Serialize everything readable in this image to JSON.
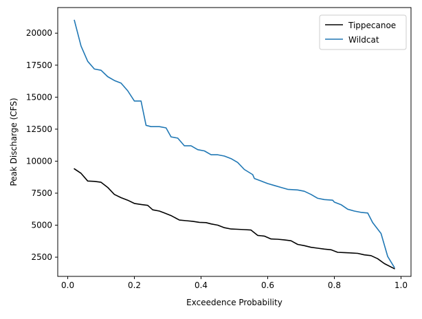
{
  "chart_data": {
    "type": "line",
    "title": "",
    "xlabel": "Exceedence Probability",
    "ylabel": "Peak Discharge (CFS)",
    "xlim": [
      -0.03,
      1.03
    ],
    "ylim": [
      1000,
      22000
    ],
    "xticks": [
      0.0,
      0.2,
      0.4,
      0.6,
      0.8,
      1.0
    ],
    "xtick_labels": [
      "0.0",
      "0.2",
      "0.4",
      "0.6",
      "0.8",
      "1.0"
    ],
    "yticks": [
      2500,
      5000,
      7500,
      10000,
      12500,
      15000,
      17500,
      20000
    ],
    "ytick_labels": [
      "2500",
      "5000",
      "7500",
      "10000",
      "12500",
      "15000",
      "17500",
      "20000"
    ],
    "grid": false,
    "legend_position": "top-right",
    "series": [
      {
        "name": "Tippecanoe",
        "color": "#000000",
        "x": [
          0.02,
          0.04,
          0.06,
          0.08,
          0.1,
          0.12,
          0.14,
          0.16,
          0.18,
          0.2,
          0.22,
          0.24,
          0.255,
          0.275,
          0.29,
          0.31,
          0.335,
          0.355,
          0.375,
          0.395,
          0.415,
          0.43,
          0.45,
          0.47,
          0.49,
          0.51,
          0.53,
          0.55,
          0.57,
          0.59,
          0.61,
          0.63,
          0.65,
          0.67,
          0.69,
          0.71,
          0.73,
          0.75,
          0.77,
          0.79,
          0.81,
          0.83,
          0.85,
          0.87,
          0.89,
          0.91,
          0.93,
          0.95,
          0.98
        ],
        "y": [
          9400,
          9050,
          8450,
          8420,
          8350,
          7950,
          7400,
          7150,
          6950,
          6700,
          6620,
          6550,
          6200,
          6100,
          5950,
          5750,
          5400,
          5350,
          5300,
          5220,
          5200,
          5100,
          5000,
          4800,
          4700,
          4680,
          4650,
          4620,
          4200,
          4150,
          3920,
          3900,
          3850,
          3780,
          3500,
          3400,
          3270,
          3200,
          3130,
          3080,
          2880,
          2860,
          2830,
          2800,
          2680,
          2620,
          2380,
          2000,
          1600
        ]
      },
      {
        "name": "Wildcat",
        "color": "#1f77b4",
        "x": [
          0.02,
          0.04,
          0.06,
          0.08,
          0.1,
          0.12,
          0.14,
          0.16,
          0.18,
          0.2,
          0.22,
          0.235,
          0.25,
          0.275,
          0.295,
          0.31,
          0.33,
          0.35,
          0.37,
          0.39,
          0.41,
          0.43,
          0.45,
          0.47,
          0.49,
          0.51,
          0.53,
          0.555,
          0.56,
          0.58,
          0.6,
          0.62,
          0.64,
          0.66,
          0.69,
          0.71,
          0.73,
          0.75,
          0.77,
          0.795,
          0.8,
          0.82,
          0.84,
          0.86,
          0.88,
          0.9,
          0.915,
          0.94,
          0.96,
          0.98
        ],
        "y": [
          21000,
          19000,
          17800,
          17200,
          17100,
          16600,
          16300,
          16100,
          15500,
          14700,
          14700,
          12800,
          12700,
          12700,
          12600,
          11900,
          11800,
          11200,
          11200,
          10900,
          10800,
          10500,
          10500,
          10400,
          10200,
          9900,
          9350,
          8950,
          8650,
          8450,
          8250,
          8100,
          7950,
          7800,
          7750,
          7650,
          7400,
          7100,
          7000,
          6950,
          6800,
          6600,
          6250,
          6100,
          6000,
          5950,
          5200,
          4350,
          2550,
          1700
        ]
      }
    ]
  }
}
